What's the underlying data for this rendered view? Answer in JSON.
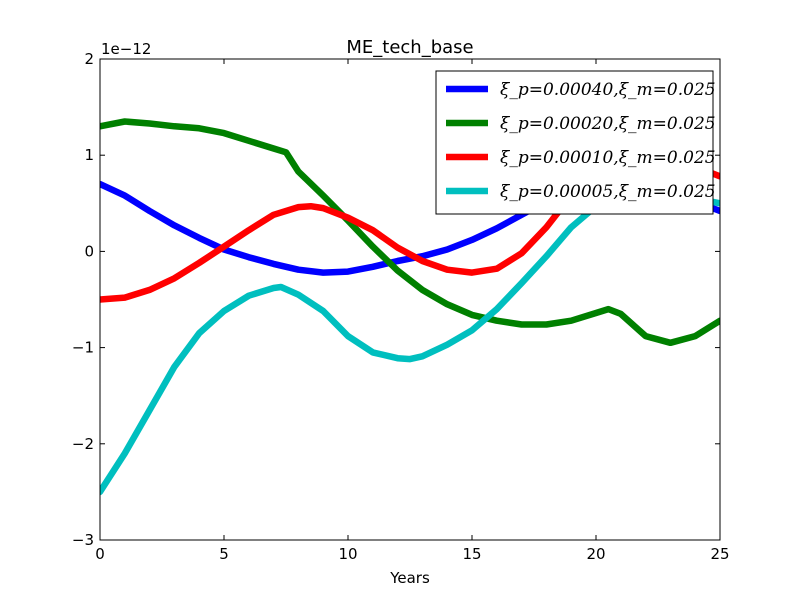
{
  "chart_data": {
    "type": "line",
    "title": "ME_tech_base",
    "xlabel": "Years",
    "ylabel": "",
    "y_offset_label": "1e−12",
    "xlim": [
      0,
      25
    ],
    "ylim": [
      -3,
      2
    ],
    "xticks": [
      0,
      5,
      10,
      15,
      20,
      25
    ],
    "yticks": [
      -3,
      -2,
      -1,
      0,
      1,
      2
    ],
    "ytick_labels": [
      "−3",
      "−2",
      "−1",
      "0",
      "1",
      "2"
    ],
    "grid": false,
    "legend_position": "top-right",
    "series": [
      {
        "name": "ξ_p=0.00040,ξ_m=0.025",
        "color": "#0000ff",
        "x": [
          0,
          1,
          2,
          3,
          4,
          5,
          6,
          7,
          8,
          9,
          10,
          11,
          12,
          13,
          14,
          15,
          16,
          17,
          18,
          19,
          20,
          21,
          22,
          23,
          24,
          25
        ],
        "y": [
          0.7,
          0.58,
          0.42,
          0.27,
          0.14,
          0.02,
          -0.06,
          -0.13,
          -0.19,
          -0.22,
          -0.21,
          -0.16,
          -0.1,
          -0.05,
          0.02,
          0.12,
          0.24,
          0.38,
          0.52,
          0.62,
          0.65,
          0.62,
          0.58,
          0.56,
          0.52,
          0.42
        ]
      },
      {
        "name": "ξ_p=0.00020,ξ_m=0.025",
        "color": "#008000",
        "x": [
          0,
          1,
          2,
          3,
          4,
          5,
          6,
          7,
          7.5,
          8,
          9,
          10,
          11,
          12,
          13,
          14,
          15,
          16,
          17,
          18,
          19,
          20,
          20.5,
          21,
          22,
          23,
          24,
          25
        ],
        "y": [
          1.3,
          1.35,
          1.33,
          1.3,
          1.28,
          1.23,
          1.15,
          1.07,
          1.03,
          0.83,
          0.58,
          0.32,
          0.05,
          -0.2,
          -0.4,
          -0.55,
          -0.66,
          -0.72,
          -0.76,
          -0.76,
          -0.72,
          -0.64,
          -0.6,
          -0.65,
          -0.88,
          -0.95,
          -0.88,
          -0.72
        ]
      },
      {
        "name": "ξ_p=0.00010,ξ_m=0.025",
        "color": "#ff0000",
        "x": [
          0,
          1,
          2,
          3,
          4,
          5,
          6,
          7,
          8,
          8.5,
          9,
          10,
          11,
          12,
          13,
          14,
          15,
          16,
          17,
          18,
          19,
          20,
          21,
          22,
          23,
          24,
          25
        ],
        "y": [
          -0.5,
          -0.48,
          -0.4,
          -0.28,
          -0.12,
          0.05,
          0.22,
          0.38,
          0.46,
          0.47,
          0.45,
          0.35,
          0.22,
          0.04,
          -0.1,
          -0.19,
          -0.22,
          -0.18,
          -0.02,
          0.25,
          0.58,
          0.82,
          0.92,
          0.92,
          0.9,
          0.88,
          0.78
        ]
      },
      {
        "name": "ξ_p=0.00005,ξ_m=0.025",
        "color": "#00bfbf",
        "x": [
          0,
          1,
          2,
          3,
          4,
          5,
          6,
          7,
          7.3,
          8,
          9,
          10,
          11,
          12,
          12.5,
          13,
          14,
          15,
          16,
          17,
          18,
          19,
          20,
          21,
          22,
          23,
          24,
          25
        ],
        "y": [
          -2.5,
          -2.1,
          -1.65,
          -1.2,
          -0.85,
          -0.62,
          -0.46,
          -0.38,
          -0.37,
          -0.45,
          -0.62,
          -0.88,
          -1.05,
          -1.11,
          -1.12,
          -1.09,
          -0.97,
          -0.82,
          -0.6,
          -0.33,
          -0.05,
          0.25,
          0.47,
          0.55,
          0.55,
          0.55,
          0.55,
          0.5
        ]
      }
    ]
  }
}
